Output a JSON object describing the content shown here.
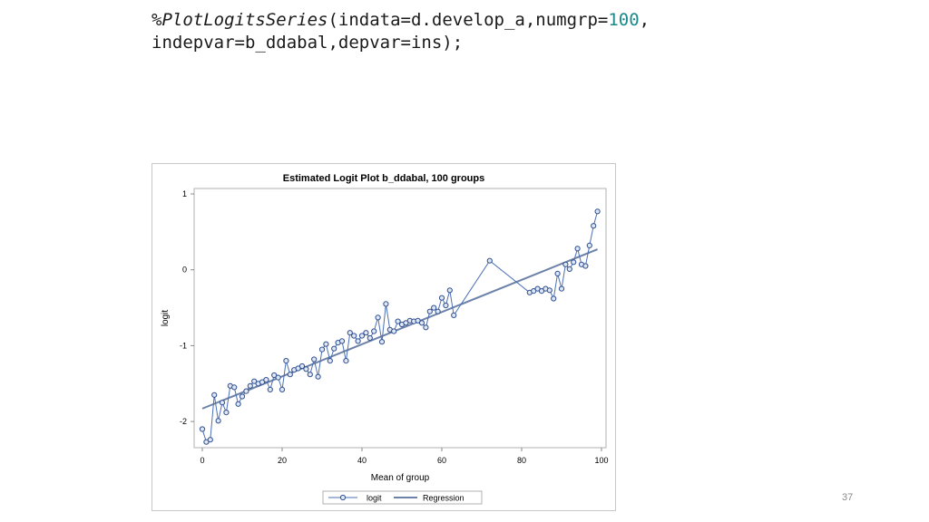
{
  "code": {
    "prefix": "%",
    "macro": "PlotLogitsSeries",
    "line1_rest": "(indata=d.develop_a,numgrp=",
    "numgrp_value": "100",
    "line1_end": ",",
    "line2": "indepvar=b_ddabal,depvar=ins);"
  },
  "page_number": "37",
  "chart_data": {
    "type": "line",
    "title": "Estimated Logit Plot b_ddabal, 100 groups",
    "xlabel": "Mean of group",
    "ylabel": "logit",
    "xlim": [
      0,
      100
    ],
    "ylim": [
      -2.3,
      1
    ],
    "xticks": [
      0,
      20,
      40,
      60,
      80,
      100
    ],
    "yticks": [
      1,
      0,
      -1,
      -2
    ],
    "grid": false,
    "legend_position": "bottom",
    "series": [
      {
        "name": "logit",
        "style": "line-with-circle-markers",
        "color": "#4a6fb5",
        "x": [
          0,
          1,
          2,
          3,
          4,
          5,
          6,
          7,
          8,
          9,
          10,
          11,
          12,
          13,
          14,
          15,
          16,
          17,
          18,
          19,
          20,
          21,
          22,
          23,
          24,
          25,
          26,
          27,
          28,
          29,
          30,
          31,
          32,
          33,
          34,
          35,
          36,
          37,
          38,
          39,
          40,
          41,
          42,
          43,
          44,
          45,
          46,
          47,
          48,
          49,
          50,
          51,
          52,
          53,
          54,
          55,
          56,
          57,
          58,
          59,
          60,
          61,
          62,
          63,
          72,
          82,
          83,
          84,
          85,
          86,
          87,
          88,
          89,
          90,
          91,
          92,
          93,
          94,
          95,
          96,
          97,
          98,
          99
        ],
        "y": [
          -2.1,
          -2.27,
          -2.24,
          -1.65,
          -1.99,
          -1.75,
          -1.88,
          -1.53,
          -1.55,
          -1.77,
          -1.67,
          -1.6,
          -1.53,
          -1.47,
          -1.5,
          -1.48,
          -1.45,
          -1.58,
          -1.39,
          -1.42,
          -1.58,
          -1.2,
          -1.38,
          -1.32,
          -1.3,
          -1.27,
          -1.31,
          -1.38,
          -1.18,
          -1.41,
          -1.05,
          -0.98,
          -1.2,
          -1.04,
          -0.96,
          -0.94,
          -1.2,
          -0.83,
          -0.87,
          -0.94,
          -0.87,
          -0.83,
          -0.9,
          -0.81,
          -0.63,
          -0.95,
          -0.45,
          -0.79,
          -0.81,
          -0.68,
          -0.72,
          -0.7,
          -0.67,
          -0.68,
          -0.67,
          -0.7,
          -0.76,
          -0.55,
          -0.5,
          -0.55,
          -0.37,
          -0.47,
          -0.27,
          -0.6,
          0.12,
          -0.3,
          -0.28,
          -0.25,
          -0.28,
          -0.25,
          -0.27,
          -0.38,
          -0.05,
          -0.25,
          0.07,
          0.01,
          0.1,
          0.28,
          0.07,
          0.05,
          0.32,
          0.58,
          0.77
        ]
      },
      {
        "name": "Regression",
        "style": "line",
        "color": "#6d82a8",
        "x": [
          0,
          99
        ],
        "y": [
          -1.83,
          0.27
        ]
      }
    ]
  }
}
